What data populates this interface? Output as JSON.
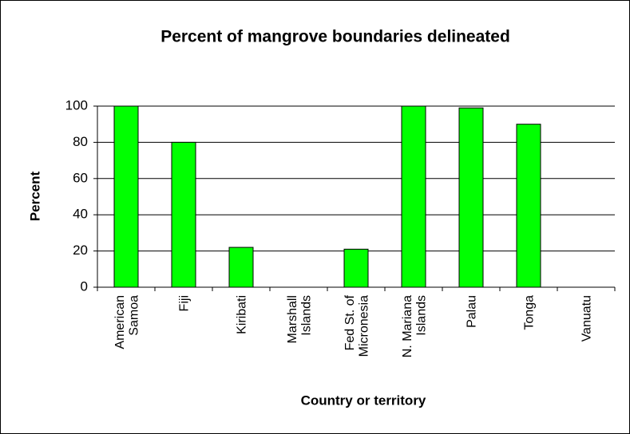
{
  "chart_data": {
    "type": "bar",
    "title": "Percent of mangrove boundaries delineated",
    "x_label": "Country or territory",
    "y_label": "Percent",
    "categories": [
      "American\nSamoa",
      "Fiji",
      "Kiribati",
      "Marshall\nIslands",
      "Fed St. of\nMicronesia",
      "N. Mariana\nIslands",
      "Palau",
      "Tonga",
      "Vanuatu"
    ],
    "values": [
      100,
      80,
      22,
      0,
      21,
      100,
      99,
      90,
      0
    ],
    "color": "#00ff00",
    "ylim": [
      0,
      100
    ],
    "yticks": [
      0,
      20,
      40,
      60,
      80,
      100
    ],
    "grid": true
  }
}
